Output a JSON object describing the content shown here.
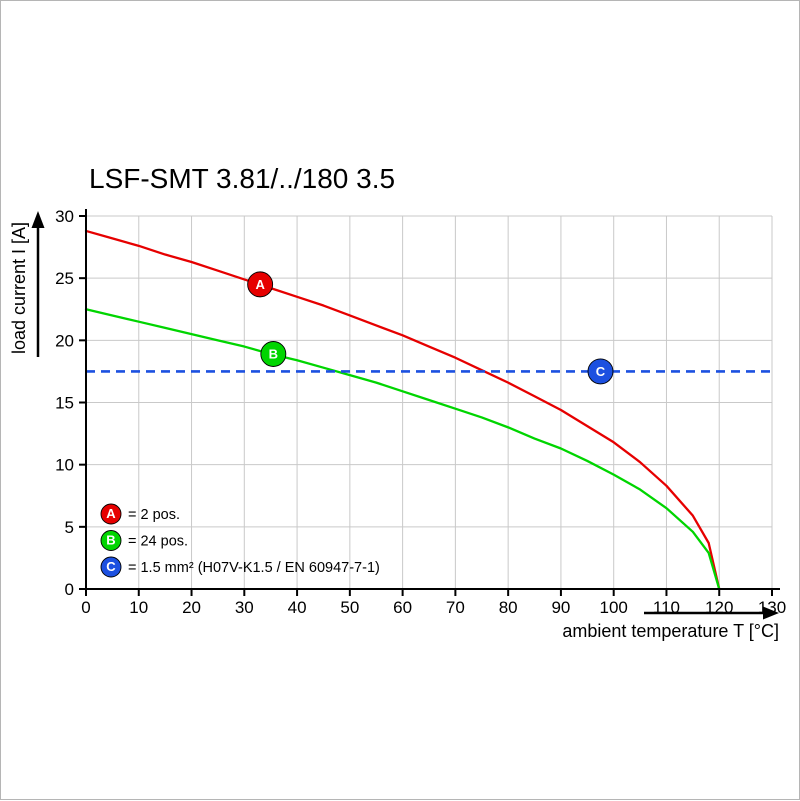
{
  "chart_data": {
    "type": "line",
    "title": "LSF-SMT 3.81/../180 3.5",
    "xlabel": "ambient temperature T [°C]",
    "ylabel": "load current I [A]",
    "xlim": [
      0,
      130
    ],
    "ylim": [
      0,
      30
    ],
    "xticks": [
      0,
      10,
      20,
      30,
      40,
      50,
      60,
      70,
      80,
      90,
      100,
      110,
      120,
      130
    ],
    "yticks": [
      0,
      5,
      10,
      15,
      20,
      25,
      30
    ],
    "grid": true,
    "legend_position": "inside bottom-left",
    "colors": {
      "axis": "#000000",
      "grid": "#c9c9c9",
      "series_a": "#e60000",
      "series_b": "#00d500",
      "series_c": "#1c50e0"
    },
    "series": [
      {
        "name": "A",
        "legend": "= 2 pos.",
        "color": "#e60000",
        "style": "solid",
        "x": [
          0,
          5,
          10,
          15,
          20,
          25,
          30,
          35,
          40,
          45,
          50,
          55,
          60,
          65,
          70,
          75,
          80,
          85,
          90,
          95,
          100,
          105,
          110,
          115,
          118,
          120
        ],
        "y": [
          28.8,
          28.2,
          27.6,
          26.9,
          26.3,
          25.6,
          24.9,
          24.2,
          23.5,
          22.8,
          22.0,
          21.2,
          20.4,
          19.5,
          18.6,
          17.6,
          16.6,
          15.5,
          14.4,
          13.1,
          11.8,
          10.2,
          8.3,
          5.9,
          3.7,
          0
        ],
        "marker": {
          "x": 33,
          "y": 24.5
        }
      },
      {
        "name": "B",
        "legend": "= 24 pos.",
        "color": "#00d500",
        "style": "solid",
        "x": [
          0,
          5,
          10,
          15,
          20,
          25,
          30,
          35,
          40,
          45,
          50,
          55,
          60,
          65,
          70,
          75,
          80,
          85,
          90,
          95,
          100,
          105,
          110,
          115,
          118,
          120
        ],
        "y": [
          22.5,
          22.0,
          21.5,
          21.0,
          20.5,
          20.0,
          19.5,
          18.9,
          18.4,
          17.8,
          17.2,
          16.6,
          15.9,
          15.2,
          14.5,
          13.8,
          13.0,
          12.1,
          11.3,
          10.3,
          9.2,
          8.0,
          6.5,
          4.6,
          2.9,
          0
        ],
        "marker": {
          "x": 35.5,
          "y": 18.9
        }
      },
      {
        "name": "C",
        "legend": "= 1.5 mm² (H07V-K1.5 / EN 60947-7-1)",
        "color": "#1c50e0",
        "style": "dashed-hline",
        "value": 17.5,
        "marker": {
          "x": 97.5,
          "y": 17.5
        }
      }
    ]
  }
}
